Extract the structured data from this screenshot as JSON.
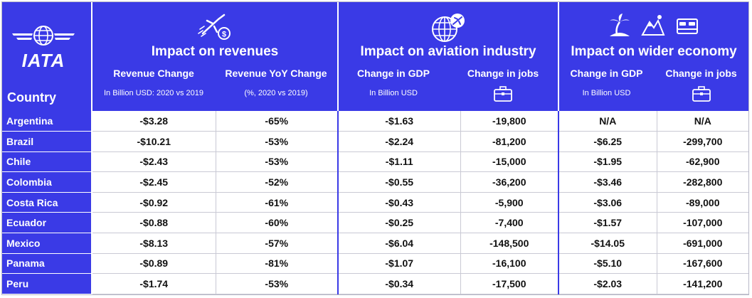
{
  "logo": {
    "text": "IATA"
  },
  "header": {
    "country_label": "Country",
    "groups": [
      {
        "title": "Impact on revenues",
        "icon": "plane-money-icon",
        "columns": [
          {
            "label": "Revenue Change",
            "note": "In Billion USD: 2020 vs 2019"
          },
          {
            "label": "Revenue YoY Change",
            "note": "(%, 2020 vs 2019)"
          }
        ]
      },
      {
        "title": "Impact on aviation industry",
        "icon": "globe-plane-icon",
        "columns": [
          {
            "label": "Change in GDP",
            "note": "In Billion USD"
          },
          {
            "label": "Change in jobs",
            "note": ""
          }
        ]
      },
      {
        "title": "Impact on wider economy",
        "icon": "beach-mountain-bed-icon",
        "columns": [
          {
            "label": "Change in GDP",
            "note": "In Billion USD"
          },
          {
            "label": "Change in jobs",
            "note": ""
          }
        ]
      }
    ]
  },
  "rows": [
    {
      "country": "Argentina",
      "values": [
        "-$3.28",
        "-65%",
        "-$1.63",
        "-19,800",
        "N/A",
        "N/A"
      ]
    },
    {
      "country": "Brazil",
      "values": [
        "-$10.21",
        "-53%",
        "-$2.24",
        "-81,200",
        "-$6.25",
        "-299,700"
      ]
    },
    {
      "country": "Chile",
      "values": [
        "-$2.43",
        "-53%",
        "-$1.11",
        "-15,000",
        "-$1.95",
        "-62,900"
      ]
    },
    {
      "country": "Colombia",
      "values": [
        "-$2.45",
        "-52%",
        "-$0.55",
        "-36,200",
        "-$3.46",
        "-282,800"
      ]
    },
    {
      "country": "Costa Rica",
      "values": [
        "-$0.92",
        "-61%",
        "-$0.43",
        "-5,900",
        "-$3.06",
        "-89,000"
      ]
    },
    {
      "country": "Ecuador",
      "values": [
        "-$0.88",
        "-60%",
        "-$0.25",
        "-7,400",
        "-$1.57",
        "-107,000"
      ]
    },
    {
      "country": "Mexico",
      "values": [
        "-$8.13",
        "-57%",
        "-$6.04",
        "-148,500",
        "-$14.05",
        "-691,000"
      ]
    },
    {
      "country": "Panama",
      "values": [
        "-$0.89",
        "-81%",
        "-$1.07",
        "-16,100",
        "-$5.10",
        "-167,600"
      ]
    },
    {
      "country": "Peru",
      "values": [
        "-$1.74",
        "-53%",
        "-$0.34",
        "-17,500",
        "-$2.03",
        "-141,200"
      ]
    }
  ],
  "colors": {
    "header_bg": "#3a3ae6",
    "text_on_header": "#ffffff"
  }
}
